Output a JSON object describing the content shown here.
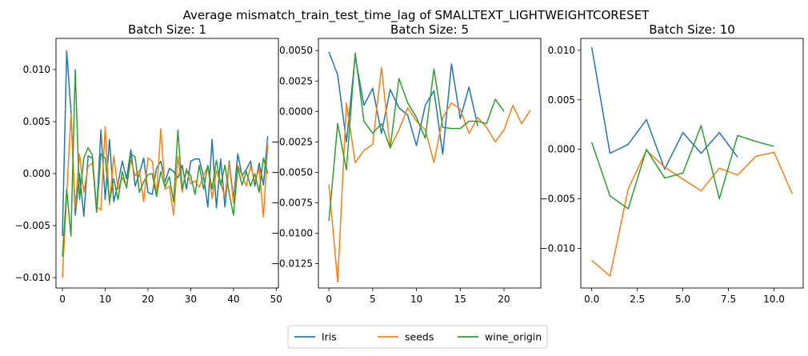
{
  "figure": {
    "suptitle": "Average mismatch_train_test_time_lag of SMALLTEXT_LIGHTWEIGHTCORESET",
    "legend_placement": "bottom-center",
    "series_colors": {
      "Iris": "#1f77b4",
      "seeds": "#ff7f0e",
      "wine_origin": "#2ca02c"
    }
  },
  "chart_data": [
    {
      "type": "line",
      "title": "Batch Size: 1",
      "xlabel": "",
      "ylabel": "",
      "xlim": [
        -1.5,
        50.5
      ],
      "ylim": [
        -0.011,
        0.013
      ],
      "xticks": [
        0,
        10,
        20,
        30,
        40,
        50
      ],
      "yticks": [
        -0.01,
        -0.005,
        0.0,
        0.005,
        0.01
      ],
      "ytick_labels": [
        "−0.010",
        "−0.005",
        "0.000",
        "0.005",
        "0.010"
      ],
      "series": [
        {
          "name": "Iris",
          "values": [
            -0.006,
            0.0118,
            0.006,
            -0.004,
            0.0,
            -0.0041,
            0.0017,
            0.0015,
            -0.0037,
            0.0042,
            -0.0025,
            0.0033,
            -0.0027,
            -0.001,
            0.0012,
            -0.0005,
            0.0023,
            -0.0012,
            0.0,
            0.0015,
            -0.0018,
            -0.002,
            0.0005,
            0.0012,
            -0.0008,
            0.0005,
            0.0002,
            -0.0004,
            0.0008,
            -0.0015,
            0.0012,
            0.0014,
            0.0014,
            -0.0003,
            -0.0032,
            0.0033,
            -0.0033,
            0.0014,
            -0.0032,
            0.0012,
            -0.0025,
            0.0019,
            -0.0002,
            0.0004,
            0.0012,
            -0.0012,
            0.001,
            -0.0011,
            0.0036
          ]
        },
        {
          "name": "seeds",
          "values": [
            -0.01,
            -0.002,
            0.0057,
            -0.0033,
            0.0019,
            -0.0018,
            0.0007,
            0.001,
            -0.0032,
            -0.0035,
            0.0045,
            -0.003,
            0.0017,
            -0.0015,
            -0.0004,
            -0.0012,
            0.0013,
            -0.0002,
            0.0003,
            -0.0027,
            0.0015,
            0.0012,
            -0.0022,
            0.0043,
            -0.0015,
            -0.0012,
            -0.004,
            0.0017,
            -0.0018,
            0.0005,
            -0.001,
            -0.0007,
            -0.0013,
            -0.0002,
            0.0007,
            -0.0024,
            0.0003,
            -0.001,
            -0.0022,
            0.001,
            -0.0028,
            0.0008,
            -0.0002,
            -0.0012,
            0.0008,
            -0.0008,
            0.0005,
            -0.0042,
            0.0028
          ]
        },
        {
          "name": "wine_origin",
          "values": [
            -0.008,
            -0.0015,
            -0.006,
            0.01,
            -0.0025,
            0.0015,
            0.0025,
            0.0018,
            -0.0037,
            0.0019,
            0.0015,
            -0.0027,
            -0.0005,
            -0.0025,
            0.0002,
            -0.0014,
            0.0019,
            0.0016,
            -0.0018,
            -0.0008,
            -0.0001,
            0.0,
            -0.0022,
            0.0002,
            -0.0013,
            -0.0003,
            -0.0027,
            0.0042,
            -0.0015,
            0.0003,
            -0.0002,
            -0.002,
            0.0008,
            -0.0015,
            0.0008,
            -0.0015,
            0.0013,
            -0.0011,
            0.0008,
            -0.0019,
            -0.004,
            0.0006,
            -0.0011,
            0.0002,
            -0.0012,
            0.0,
            -0.0018,
            0.0015,
            0.0
          ]
        }
      ]
    },
    {
      "type": "line",
      "title": "Batch Size: 5",
      "xlabel": "",
      "ylabel": "",
      "xlim": [
        -1.2,
        24.2
      ],
      "ylim": [
        -0.0145,
        0.006
      ],
      "xticks": [
        0,
        5,
        10,
        15,
        20
      ],
      "yticks": [
        -0.0125,
        -0.01,
        -0.0075,
        -0.005,
        -0.0025,
        0.0,
        0.0025,
        0.005
      ],
      "ytick_labels": [
        "−0.0125",
        "−0.0100",
        "−0.0075",
        "−0.0050",
        "−0.0025",
        "0.0000",
        "0.0025",
        "0.0050"
      ],
      "series": [
        {
          "name": "Iris",
          "values": [
            0.0049,
            0.003,
            -0.0025,
            0.0045,
            0.0005,
            0.0019,
            -0.0018,
            0.0018,
            0.0003,
            -0.0003,
            -0.0028,
            0.0005,
            0.0017,
            -0.0035,
            0.0039,
            -0.0006,
            0.002,
            -0.0012
          ]
        },
        {
          "name": "seeds",
          "values": [
            -0.006,
            -0.014,
            0.0007,
            -0.0042,
            -0.0032,
            -0.0027,
            0.0036,
            -0.003,
            -0.0015,
            0.0003,
            -0.0008,
            -0.0015,
            -0.0042,
            -0.0005,
            0.0007,
            0.0002,
            -0.0018,
            -0.0005,
            -0.0013,
            -0.0025,
            -0.0015,
            0.0005,
            -0.001,
            0.0001
          ]
        },
        {
          "name": "wine_origin",
          "values": [
            -0.009,
            -0.001,
            -0.0048,
            0.0048,
            -0.0008,
            -0.0018,
            -0.001,
            -0.003,
            0.0027,
            0.0007,
            -0.0005,
            -0.0022,
            0.0035,
            -0.0013,
            -0.0014,
            -0.0014,
            -0.0008,
            -0.0008,
            -0.001,
            0.001,
            0.0
          ]
        }
      ]
    },
    {
      "type": "line",
      "title": "Batch Size: 10",
      "xlabel": "",
      "ylabel": "",
      "xlim": [
        -0.6,
        11.6
      ],
      "ylim": [
        -0.014,
        0.0112
      ],
      "xticks": [
        0.0,
        2.5,
        5.0,
        7.5,
        10.0
      ],
      "xtick_labels": [
        "0.0",
        "2.5",
        "5.0",
        "7.5",
        "10.0"
      ],
      "yticks": [
        -0.01,
        -0.005,
        0.0,
        0.005,
        0.01
      ],
      "ytick_labels": [
        "−0.010",
        "−0.005",
        "0.000",
        "0.005",
        "0.010"
      ],
      "series": [
        {
          "name": "Iris",
          "values": [
            0.0103,
            -0.0004,
            0.0005,
            0.003,
            -0.002,
            0.0017,
            -0.0004,
            0.0017,
            -0.0008
          ]
        },
        {
          "name": "seeds",
          "values": [
            -0.0112,
            -0.0128,
            -0.004,
            -0.0001,
            -0.0018,
            -0.003,
            -0.0042,
            -0.0019,
            -0.0026,
            -0.0007,
            -0.0003,
            -0.0045
          ]
        },
        {
          "name": "wine_origin",
          "values": [
            0.0007,
            -0.0047,
            -0.006,
            0.0,
            -0.0029,
            -0.0024,
            0.0024,
            -0.005,
            0.0014,
            0.0008,
            0.0003
          ]
        }
      ]
    }
  ]
}
